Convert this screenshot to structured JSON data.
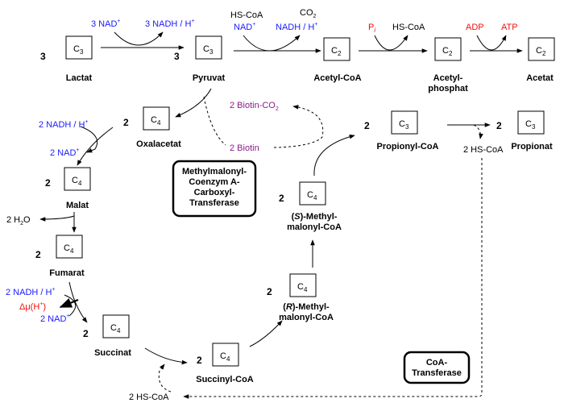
{
  "compounds": {
    "lactat": {
      "count": "3",
      "carbon": "C",
      "carbon_sub": "3",
      "name": "Lactat"
    },
    "pyruvat": {
      "count": "3",
      "carbon": "C",
      "carbon_sub": "3",
      "name": "Pyruvat"
    },
    "acetyl_coa": {
      "carbon": "C",
      "carbon_sub": "2",
      "name": "Acetyl-CoA"
    },
    "acetylphosphat": {
      "carbon": "C",
      "carbon_sub": "2",
      "name_line1": "Acetyl-",
      "name_line2": "phosphat"
    },
    "acetat": {
      "carbon": "C",
      "carbon_sub": "2",
      "name": "Acetat"
    },
    "oxalacetat": {
      "count": "2",
      "carbon": "C",
      "carbon_sub": "4",
      "name": "Oxalacetat"
    },
    "malat": {
      "count": "2",
      "carbon": "C",
      "carbon_sub": "4",
      "name": "Malat"
    },
    "fumarat": {
      "count": "2",
      "carbon": "C",
      "carbon_sub": "4",
      "name": "Fumarat"
    },
    "succinat": {
      "count": "2",
      "carbon": "C",
      "carbon_sub": "4",
      "name": "Succinat"
    },
    "succinyl_coa": {
      "count": "2",
      "carbon": "C",
      "carbon_sub": "4",
      "name": "Succinyl-CoA"
    },
    "r_methylmalonyl": {
      "count": "2",
      "carbon": "C",
      "carbon_sub": "4",
      "name_pre": "(",
      "name_italic": "R",
      "name_post": ")-Methyl-",
      "name_line2": "malonyl-CoA"
    },
    "s_methylmalonyl": {
      "count": "2",
      "carbon": "C",
      "carbon_sub": "4",
      "name_pre": "(",
      "name_italic": "S",
      "name_post": ")-Methyl-",
      "name_line2": "malonyl-CoA"
    },
    "propionyl_coa": {
      "count": "2",
      "carbon": "C",
      "carbon_sub": "3",
      "name": "Propionyl-CoA"
    },
    "propionat": {
      "count": "2",
      "carbon": "C",
      "carbon_sub": "3",
      "name": "Propionat"
    }
  },
  "cofactors": {
    "nad_in_lactate": {
      "text": "3 NAD",
      "sup": "+"
    },
    "nadh_out_lactate": {
      "text": "3 NADH / H",
      "sup": "+"
    },
    "hs_coa_pdh": {
      "text": "HS-CoA"
    },
    "nad_pdh": {
      "text": "NAD",
      "sup": "+"
    },
    "co2_pdh": {
      "text": "CO",
      "sub": "2"
    },
    "nadh_pdh": {
      "text": "NADH / H",
      "sup": "+"
    },
    "pi": {
      "text": "P",
      "sub": "i"
    },
    "hs_coa_pta": {
      "text": "HS-CoA"
    },
    "adp": {
      "text": "ADP"
    },
    "atp": {
      "text": "ATP"
    },
    "nadh_malat": {
      "text": "2 NADH / H",
      "sup": "+"
    },
    "nad_malat": {
      "text": "2 NAD",
      "sup": "+"
    },
    "h2o": {
      "text": "2 H",
      "sub": "2",
      "post": "O"
    },
    "nadh_fumarat": {
      "text": "2 NADH / H",
      "sup": "+"
    },
    "delta_mu": {
      "text": "Δμ(H",
      "sup": "+",
      "post": ")"
    },
    "nad_fumarat": {
      "text": "2 NAD",
      "sup": "+"
    },
    "biotin_co2": {
      "text": "2 Biotin-CO",
      "sub": "2"
    },
    "biotin": {
      "text": "2 Biotin"
    },
    "hs_coa_propionat": {
      "text": "2 HS-CoA"
    },
    "hs_coa_bottom": {
      "text": "2 HS-CoA"
    }
  },
  "enzymes": {
    "transcarboxylase": {
      "lines": [
        "Methylmalonyl-",
        "Coenzym A-",
        "Carboxyl-",
        "Transferase"
      ]
    },
    "coa_transferase": {
      "lines": [
        "CoA-",
        "Transferase"
      ]
    }
  },
  "colors": {
    "blue": "#1a1aff",
    "red": "#ee1111",
    "purple": "#8b1a8b",
    "black": "#000000"
  }
}
